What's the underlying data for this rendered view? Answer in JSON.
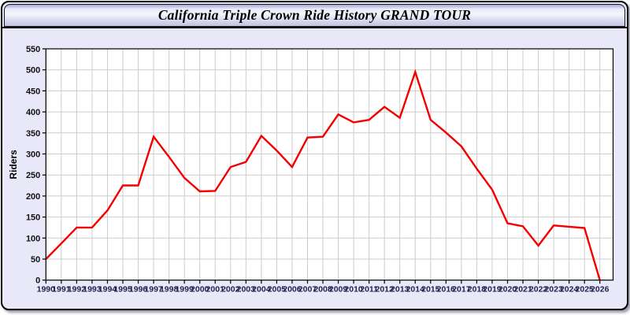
{
  "window": {
    "title": "California Triple Crown Ride History GRAND TOUR"
  },
  "chart_data": {
    "type": "line",
    "title": "California Triple Crown Ride History GRAND TOUR",
    "xlabel": "",
    "ylabel": "Riders",
    "x": [
      1990,
      1991,
      1992,
      1993,
      1994,
      1995,
      1996,
      1997,
      1998,
      1999,
      2000,
      2001,
      2002,
      2003,
      2004,
      2005,
      2006,
      2007,
      2008,
      2009,
      2010,
      2011,
      2012,
      2013,
      2014,
      2015,
      2016,
      2017,
      2018,
      2019,
      2020,
      2021,
      2022,
      2023,
      2024,
      2025,
      2026
    ],
    "series": [
      {
        "name": "Riders",
        "color": "#f40000",
        "values": [
          50,
          87,
          125,
          125,
          166,
          225,
          225,
          341,
          293,
          243,
          211,
          212,
          269,
          281,
          343,
          308,
          269,
          339,
          341,
          394,
          375,
          381,
          412,
          386,
          495,
          381,
          351,
          318,
          265,
          215,
          135,
          128,
          82,
          130,
          127,
          124,
          0
        ]
      }
    ],
    "ylim": [
      0,
      550
    ],
    "ytick_step": 50,
    "grid": true,
    "legend_position": "none",
    "plot_bg": "#ffffff",
    "grid_color": "#cccccc",
    "axis_color": "#000000",
    "ytick_label_color": "#111111",
    "xtick_label_color": "#22224e"
  }
}
